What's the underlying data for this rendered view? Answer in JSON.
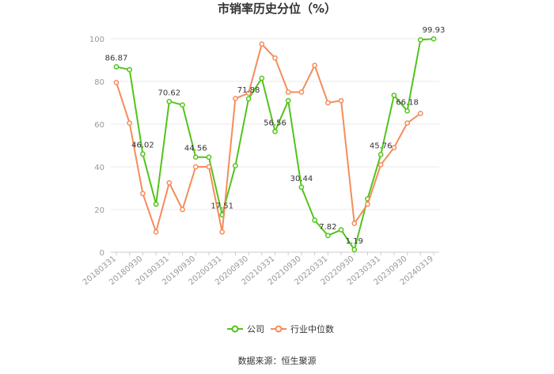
{
  "chart_data": {
    "type": "line",
    "title": "市销率历史分位（%）",
    "xlabel": "",
    "ylabel": "",
    "ylim": [
      0,
      100
    ],
    "yticks": [
      0,
      20,
      40,
      60,
      80,
      100
    ],
    "grid": true,
    "legend_position": "bottom-center",
    "tick_labels": [
      "20180331",
      "20180930",
      "20190331",
      "20190930",
      "20200331",
      "20200930",
      "20210331",
      "20210930",
      "20220331",
      "20220930",
      "20230331",
      "20230930",
      "20240319"
    ],
    "series": [
      {
        "name": "公司",
        "color": "#52c41a",
        "values": [
          86.87,
          85.5,
          46.02,
          22.5,
          70.62,
          69.0,
          44.56,
          44.5,
          17.51,
          40.5,
          71.88,
          81.5,
          56.56,
          71.0,
          30.44,
          15.0,
          7.82,
          10.5,
          1.19,
          25.0,
          45.76,
          73.5,
          66.18,
          99.5,
          99.93
        ]
      },
      {
        "name": "行业中位数",
        "color": "#f58c5a",
        "values": [
          79.5,
          60.5,
          27.5,
          9.5,
          32.5,
          20.0,
          40.0,
          40.0,
          9.5,
          72.0,
          74.5,
          97.5,
          91.0,
          75.0,
          75.0,
          87.5,
          70.0,
          71.0,
          13.5,
          22.5,
          41.0,
          49.0,
          60.5,
          65.0,
          null
        ]
      }
    ],
    "data_labels": [
      {
        "series": 0,
        "index": 0,
        "text": "86.87"
      },
      {
        "series": 0,
        "index": 2,
        "text": "46.02"
      },
      {
        "series": 0,
        "index": 4,
        "text": "70.62"
      },
      {
        "series": 0,
        "index": 6,
        "text": "44.56"
      },
      {
        "series": 0,
        "index": 8,
        "text": "17.51"
      },
      {
        "series": 0,
        "index": 10,
        "text": "71.88"
      },
      {
        "series": 0,
        "index": 12,
        "text": "56.56"
      },
      {
        "series": 0,
        "index": 14,
        "text": "30.44"
      },
      {
        "series": 0,
        "index": 16,
        "text": "7.82"
      },
      {
        "series": 0,
        "index": 18,
        "text": "1.19"
      },
      {
        "series": 0,
        "index": 20,
        "text": "45.76"
      },
      {
        "series": 0,
        "index": 22,
        "text": "66.18"
      },
      {
        "series": 0,
        "index": 24,
        "text": "99.93"
      }
    ]
  },
  "legend": {
    "company": "公司",
    "industry": "行业中位数"
  },
  "source_text": "数据来源：恒生聚源"
}
